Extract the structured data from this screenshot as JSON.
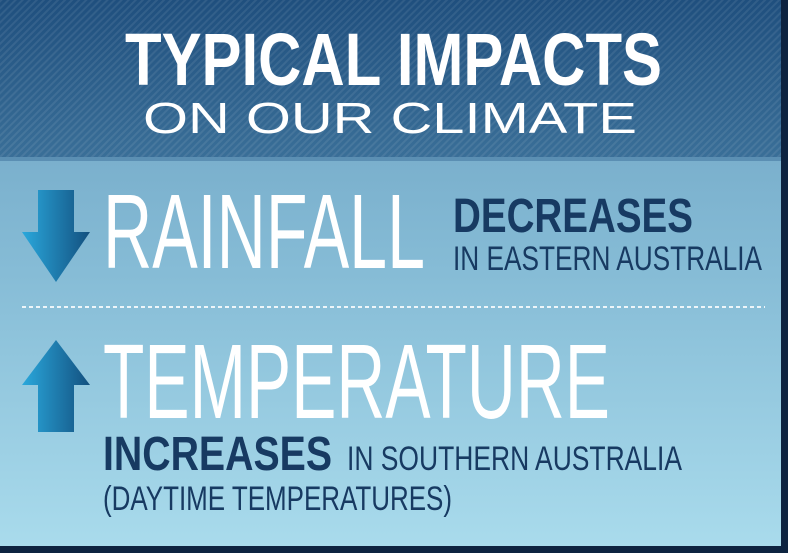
{
  "header": {
    "title": "TYPICAL IMPACTS",
    "subtitle": "ON OUR CLIMATE"
  },
  "items": [
    {
      "label": "RAINFALL",
      "change": "DECREASES",
      "region": "IN EASTERN AUSTRALIA"
    },
    {
      "label": "TEMPERATURE",
      "change": "INCREASES",
      "region": "IN SOUTHERN AUSTRALIA",
      "note": "(DAYTIME TEMPERATURES)"
    }
  ]
}
